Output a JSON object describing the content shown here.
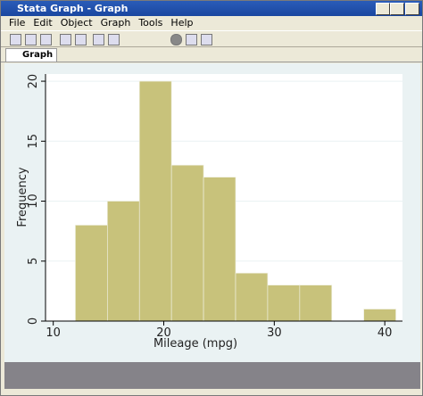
{
  "window": {
    "title": "Stata Graph - Graph",
    "menu": [
      "File",
      "Edit",
      "Object",
      "Graph",
      "Tools",
      "Help"
    ],
    "tab": "Graph"
  },
  "chart_data": {
    "type": "histogram",
    "xlabel": "Mileage (mpg)",
    "ylabel": "Frequency",
    "bins": [
      12,
      14.9,
      17.8,
      20.7,
      23.6,
      26.5,
      29.4,
      32.3,
      35.2,
      38.1,
      41
    ],
    "values": [
      8,
      10,
      20,
      13,
      12,
      4,
      3,
      3,
      0,
      1
    ],
    "color": "#c8c27b",
    "xlim": [
      9.3,
      41.6
    ],
    "xticks": [
      10,
      20,
      30,
      40
    ],
    "ylim": [
      0,
      20.6
    ],
    "yticks": [
      0,
      5,
      10,
      15,
      20
    ],
    "grid": true
  }
}
